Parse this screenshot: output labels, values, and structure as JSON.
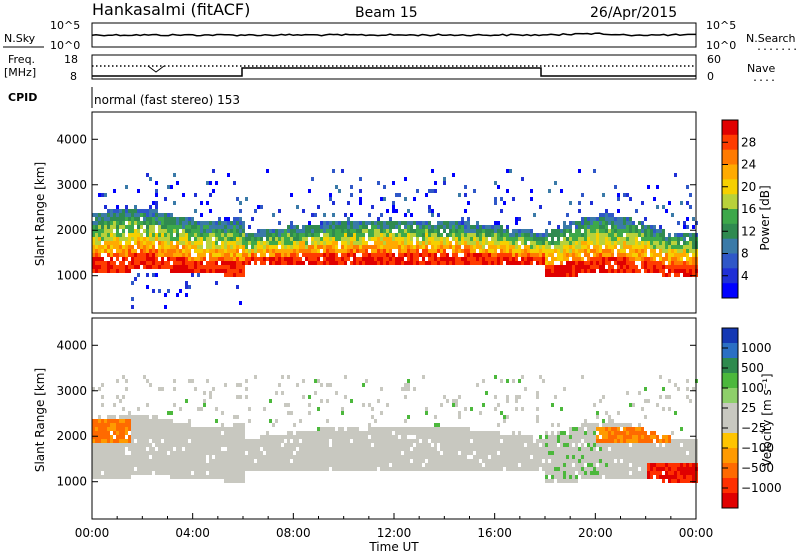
{
  "header": {
    "station": "Hankasalmi (fitACF)",
    "beam": "Beam 15",
    "date": "26/Apr/2015"
  },
  "noise_panel": {
    "left_label": "N.Sky",
    "right_label": "N.Search",
    "right_marker": "........",
    "left_ticks": [
      "10^5",
      "10^0"
    ],
    "right_ticks": [
      "10^5",
      "10^0"
    ]
  },
  "freq_panel": {
    "left_label_top": "Freq.",
    "left_label_bottom": "[MHz]",
    "left_ticks": [
      "18",
      "8"
    ],
    "right_label": "Nave",
    "right_marker": "....",
    "right_ticks": [
      "60",
      "0"
    ]
  },
  "cpid_panel": {
    "label": "CPID",
    "text": "normal (fast stereo) 153"
  },
  "time_axis": {
    "label": "Time UT",
    "ticks": [
      "00:00",
      "04:00",
      "08:00",
      "12:00",
      "16:00",
      "20:00",
      "00:00"
    ]
  },
  "chart_data": [
    {
      "type": "heatmap",
      "quantity": "power",
      "ylabel": "Slant Range [km]",
      "yticks": [
        1000,
        2000,
        3000,
        4000
      ],
      "ylim": [
        180,
        4600
      ],
      "xlim_hours": [
        0,
        24
      ],
      "colorbar": {
        "label": "Power [dB]",
        "ticks": [
          "28",
          "24",
          "20",
          "16",
          "12",
          "8",
          "4"
        ],
        "colors": [
          "#e00000",
          "#ff3c00",
          "#ff7a00",
          "#ffaa00",
          "#f6d000",
          "#b8d13a",
          "#3da84a",
          "#2f8a50",
          "#3a7aa8",
          "#2f57c8",
          "#1f2fd6",
          "#0000ff"
        ]
      }
    },
    {
      "type": "heatmap",
      "quantity": "velocity",
      "ylabel": "Slant Range [km]",
      "yticks": [
        1000,
        2000,
        3000,
        4000
      ],
      "ylim": [
        180,
        4600
      ],
      "xlim_hours": [
        0,
        24
      ],
      "colorbar": {
        "label": "Velocity [m s⁻¹]",
        "ticks": [
          "1000",
          "500",
          "100",
          "25",
          "−25",
          "−100",
          "−500",
          "−1000"
        ],
        "colors": [
          "#1438b4",
          "#2a6fc4",
          "#2e8a4e",
          "#4cb83c",
          "#8ed06a",
          "#c8c8c0",
          "#c8c8c0",
          "#ffc400",
          "#ff9a00",
          "#ff6a00",
          "#ff3000",
          "#e00000"
        ]
      }
    }
  ]
}
